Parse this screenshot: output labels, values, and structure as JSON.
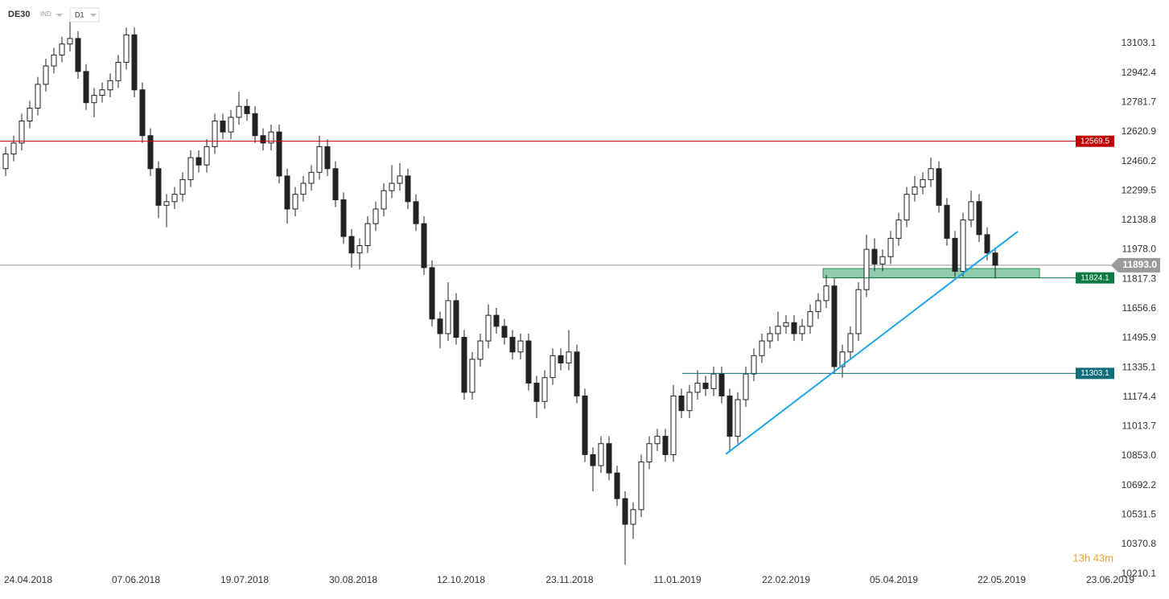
{
  "chart_data": {
    "type": "candlestick",
    "symbol": "DE30",
    "market": "IND",
    "interval": "D1",
    "timer": "13h 43m",
    "open": [
      12420,
      12500,
      12560,
      12680,
      12750,
      12880,
      12980,
      13040,
      13100,
      13130,
      12950,
      12780,
      12820,
      12850,
      12900,
      13000,
      13150,
      12850,
      12600,
      12420,
      12220,
      12240,
      12280,
      12360,
      12480,
      12440,
      12540,
      12680,
      12620,
      12700,
      12760,
      12720,
      12600,
      12560,
      12620,
      12380,
      12200,
      12280,
      12340,
      12400,
      12540,
      12420,
      12250,
      12050,
      11960,
      12000,
      12120,
      12200,
      12300,
      12340,
      12380,
      12240,
      12120,
      11880,
      11600,
      11520,
      11700,
      11500,
      11200,
      11380,
      11480,
      11620,
      11560,
      11500,
      11420,
      11480,
      11250,
      11150,
      11280,
      11400,
      11360,
      11420,
      11180,
      10860,
      10800,
      10920,
      10760,
      10620,
      10480,
      10560,
      10820,
      10920,
      10960,
      10860,
      11180,
      11100,
      11200,
      11250,
      11220,
      11300,
      11180,
      10960,
      11160,
      11300,
      11400,
      11480,
      11520,
      11560,
      11580,
      11520,
      11560,
      11640,
      11700,
      11780,
      11340,
      11420,
      11520,
      11760,
      11980,
      11900,
      11940,
      12040,
      12140,
      12280,
      12320,
      12360,
      12420,
      12220,
      12040,
      11860,
      12140,
      12240,
      12060,
      11960
    ],
    "high": [
      12540,
      12600,
      12720,
      12790,
      12920,
      13020,
      13080,
      13140,
      13220,
      13170,
      12990,
      12860,
      12890,
      12940,
      13040,
      13190,
      13190,
      12890,
      12640,
      12460,
      12280,
      12320,
      12400,
      12520,
      12520,
      12580,
      12720,
      12720,
      12740,
      12840,
      12800,
      12760,
      12640,
      12660,
      12660,
      12420,
      12320,
      12380,
      12440,
      12600,
      12580,
      12460,
      12290,
      12090,
      12040,
      12160,
      12240,
      12340,
      12440,
      12450,
      12420,
      12280,
      12160,
      11920,
      11640,
      11800,
      11740,
      11540,
      11420,
      11520,
      11680,
      11660,
      11600,
      11540,
      11520,
      11520,
      11290,
      11320,
      11440,
      11440,
      11540,
      11460,
      11220,
      10900,
      10960,
      10960,
      10800,
      10660,
      10600,
      10860,
      10960,
      11000,
      11000,
      11240,
      11220,
      11240,
      11320,
      11290,
      11340,
      11340,
      11220,
      11200,
      11340,
      11440,
      11520,
      11560,
      11640,
      11620,
      11620,
      11600,
      11680,
      11740,
      11840,
      11820,
      11460,
      11560,
      11800,
      12060,
      12040,
      11980,
      12080,
      12180,
      12320,
      12380,
      12400,
      12480,
      12460,
      12260,
      12080,
      12180,
      12300,
      12280,
      12100,
      11990
    ],
    "low": [
      12380,
      12460,
      12520,
      12640,
      12710,
      12840,
      12940,
      13000,
      13060,
      12910,
      12740,
      12700,
      12780,
      12810,
      12860,
      12960,
      12810,
      12560,
      12380,
      12150,
      12100,
      12200,
      12240,
      12320,
      12400,
      12400,
      12500,
      12580,
      12580,
      12660,
      12680,
      12560,
      12520,
      12520,
      12340,
      12120,
      12160,
      12240,
      12300,
      12360,
      12380,
      12210,
      12010,
      11880,
      11870,
      11960,
      12080,
      12160,
      12260,
      12300,
      12200,
      12080,
      11840,
      11560,
      11440,
      11480,
      11460,
      11160,
      11160,
      11340,
      11440,
      11520,
      11460,
      11380,
      11380,
      11210,
      11060,
      11110,
      11240,
      11320,
      11320,
      11140,
      10820,
      10660,
      10760,
      10720,
      10580,
      10260,
      10400,
      10520,
      10780,
      10880,
      10820,
      10820,
      11060,
      11060,
      11160,
      11180,
      11180,
      11140,
      10880,
      10920,
      11120,
      11260,
      11360,
      11440,
      11480,
      11520,
      11480,
      11480,
      11520,
      11600,
      11660,
      11300,
      11280,
      11380,
      11480,
      11720,
      11860,
      11860,
      11900,
      12000,
      12100,
      12240,
      12280,
      12320,
      12180,
      12000,
      11830,
      11830,
      12100,
      12020,
      11920,
      11820
    ],
    "close": [
      12500,
      12560,
      12680,
      12750,
      12880,
      12980,
      13040,
      13100,
      13130,
      12950,
      12780,
      12820,
      12850,
      12900,
      13000,
      13150,
      12850,
      12600,
      12420,
      12220,
      12240,
      12280,
      12360,
      12480,
      12440,
      12540,
      12680,
      12620,
      12700,
      12760,
      12720,
      12600,
      12560,
      12620,
      12380,
      12200,
      12280,
      12340,
      12400,
      12540,
      12420,
      12250,
      12050,
      11960,
      12000,
      12120,
      12200,
      12300,
      12340,
      12380,
      12240,
      12120,
      11880,
      11600,
      11520,
      11700,
      11500,
      11200,
      11380,
      11480,
      11620,
      11560,
      11500,
      11420,
      11480,
      11250,
      11150,
      11280,
      11400,
      11360,
      11420,
      11180,
      10860,
      10800,
      10920,
      10760,
      10620,
      10480,
      10560,
      10820,
      10920,
      10960,
      10860,
      11180,
      11100,
      11200,
      11250,
      11220,
      11300,
      11180,
      10960,
      11160,
      11300,
      11400,
      11480,
      11520,
      11560,
      11580,
      11520,
      11560,
      11640,
      11700,
      11780,
      11340,
      11420,
      11520,
      11760,
      11980,
      11900,
      11940,
      12040,
      12140,
      12280,
      12320,
      12360,
      12420,
      12220,
      12040,
      11860,
      12140,
      12240,
      12060,
      11960,
      11893
    ],
    "xlim": [
      -0.7,
      137.8
    ],
    "xticks": [
      {
        "value": 2.8,
        "label": "24.04.2018"
      },
      {
        "value": 16.2,
        "label": "07.06.2018"
      },
      {
        "value": 29.7,
        "label": "19.07.2018"
      },
      {
        "value": 43.2,
        "label": "30.08.2018"
      },
      {
        "value": 56.6,
        "label": "12.10.2018"
      },
      {
        "value": 70.1,
        "label": "23.11.2018"
      },
      {
        "value": 83.5,
        "label": "11.01.2019"
      },
      {
        "value": 97,
        "label": "22.02.2019"
      },
      {
        "value": 110.4,
        "label": "05.04.2019"
      },
      {
        "value": 123.8,
        "label": "22.05.2019"
      },
      {
        "value": 137.3,
        "label": "23.06.2019"
      }
    ],
    "ylim": [
      10204,
      13340
    ],
    "yticks": [
      10210.1,
      10370.8,
      10531.5,
      10692.2,
      {
        "value": 10853,
        "label": "10853.0"
      },
      11013.7,
      11174.4,
      11335.1,
      11495.9,
      11656.6,
      11817.3,
      {
        "value": 11978,
        "label": "11978.0"
      },
      12138.8,
      12299.5,
      12460.2,
      12620.9,
      12781.7,
      12942.4,
      13103.1
    ],
    "levels": [
      {
        "value": 12569.5,
        "color": "#c00000",
        "x_start": -0.7
      },
      {
        "value": 11824.1,
        "color": "#0b7a45",
        "x_start": 102.8
      },
      {
        "value": 11303.1,
        "color": "#0f6e78",
        "x_start": 84.1
      }
    ],
    "current_price": {
      "value": 11893,
      "label": "11893.0",
      "color": "#9a9a9a"
    },
    "zone": {
      "low": 11825,
      "high": 11875,
      "x": [
        101.6,
        128.5
      ],
      "color": "#7cc4a0"
    },
    "trendline": {
      "x": [
        89.5,
        125.8
      ],
      "y": [
        10862,
        12077
      ],
      "color": "#1ea5e8"
    }
  }
}
